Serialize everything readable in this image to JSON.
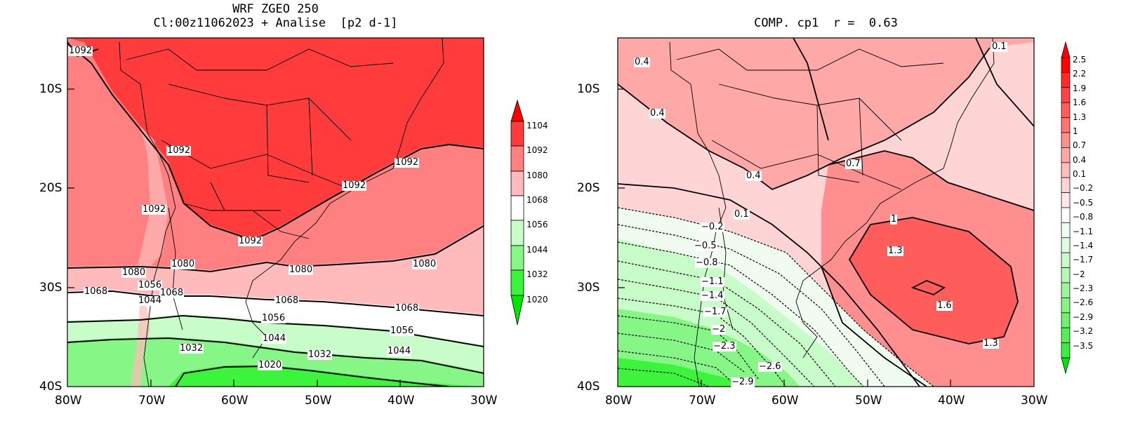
{
  "left": {
    "title_line1": "WRF ZGEO 250",
    "title_line2": "Cl:00z11062023 + Analise  [p2 d-1]",
    "lat_labels": [
      "10S",
      "20S",
      "30S",
      "40S"
    ],
    "lon_labels": [
      "80W",
      "70W",
      "60W",
      "50W",
      "40W",
      "30W"
    ],
    "colorbar_labels": [
      "1104",
      "1092",
      "1080",
      "1068",
      "1056",
      "1044",
      "1032",
      "1020"
    ],
    "contour_labels": [
      "1092",
      "1092",
      "1092",
      "1092",
      "1092",
      "1092",
      "1080",
      "1080",
      "1080",
      "1080",
      "1068",
      "1056",
      "1068",
      "1068",
      "1068",
      "1044",
      "1056",
      "1044",
      "1056",
      "1032",
      "1032",
      "1044",
      "1020"
    ],
    "colors": {
      "c1092": "#ff3b3b",
      "c1080": "#ff8080",
      "c1068": "#ffbbbb",
      "c1056": "#ffffff",
      "c1044": "#c8fcc8",
      "c1032": "#86f786",
      "c1020": "#3df43d"
    }
  },
  "right": {
    "title": "COMP. cp1  r =  0.63",
    "lat_labels": [
      "10S",
      "20S",
      "30S",
      "40S"
    ],
    "lon_labels": [
      "80W",
      "70W",
      "60W",
      "50W",
      "40W",
      "30W"
    ],
    "colorbar_labels": [
      "2.5",
      "2.2",
      "1.9",
      "1.6",
      "1.3",
      "1",
      "0.7",
      "0.4",
      "0.1",
      "−0.2",
      "−0.5",
      "−0.8",
      "−1.1",
      "−1.4",
      "−1.7",
      "−2",
      "−2.3",
      "−2.6",
      "−2.9",
      "−3.2",
      "−3.5"
    ],
    "contour_labels": [
      "0.4",
      "0.4",
      "0.1",
      "0.7",
      "0.4",
      "0.1",
      "−0.2",
      "−0.5",
      "−0.8",
      "1",
      "1.3",
      "1.6",
      "1.3",
      "−1.1",
      "−1.4",
      "−1.7",
      "−2",
      "−2.3",
      "−2.6",
      "−2.9"
    ],
    "colors": {
      "high": "#ff5c5c",
      "mid": "#ff8f8f",
      "low": "#ffa8a8",
      "pos": "#ffd4d4",
      "neg": "#f0fcf0",
      "green1": "#c8fcc8",
      "green2": "#86f786",
      "green3": "#3df43d"
    }
  }
}
